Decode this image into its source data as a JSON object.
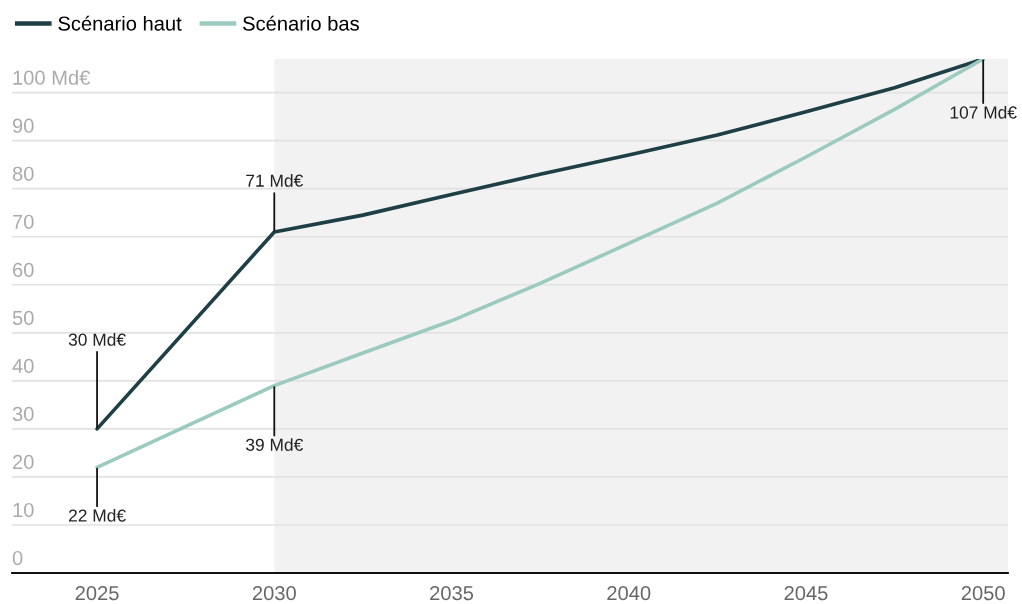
{
  "chart_data": {
    "type": "line",
    "legend": "top left",
    "grid": "y",
    "x": [
      2025,
      2030,
      2032.5,
      2035,
      2037.5,
      2040,
      2042.5,
      2045,
      2047.5,
      2050
    ],
    "series": [
      {
        "name": "Scénario haut",
        "color": "#1e3f46",
        "values": [
          30,
          71,
          74.5,
          78.8,
          83,
          87,
          91.2,
          96,
          101,
          107
        ],
        "value_labels": [
          "30 Md€",
          "71 Md€",
          null,
          null,
          null,
          null,
          null,
          null,
          null,
          "107 Md€"
        ]
      },
      {
        "name": "Scénario bas",
        "color": "#9ccac1",
        "values": [
          22,
          39,
          45.8,
          52.5,
          60.3,
          68.6,
          77,
          86.6,
          96.5,
          107
        ],
        "value_labels": [
          "22 Md€",
          "39 Md€",
          null,
          null,
          null,
          null,
          null,
          null,
          null,
          null
        ]
      }
    ],
    "xlim": [
      2022.6,
      2050.7
    ],
    "xticks": [
      2025,
      2030,
      2035,
      2040,
      2045,
      2050
    ],
    "ylim": [
      0,
      107
    ],
    "yticks": [
      0,
      10,
      20,
      30,
      40,
      50,
      60,
      70,
      80,
      90,
      {
        "value": 100,
        "label": "100 Md€"
      }
    ],
    "bands": [
      {
        "axis": "x",
        "from": 2030,
        "to": 2050.7,
        "color": "#f2f2f2"
      }
    ]
  }
}
